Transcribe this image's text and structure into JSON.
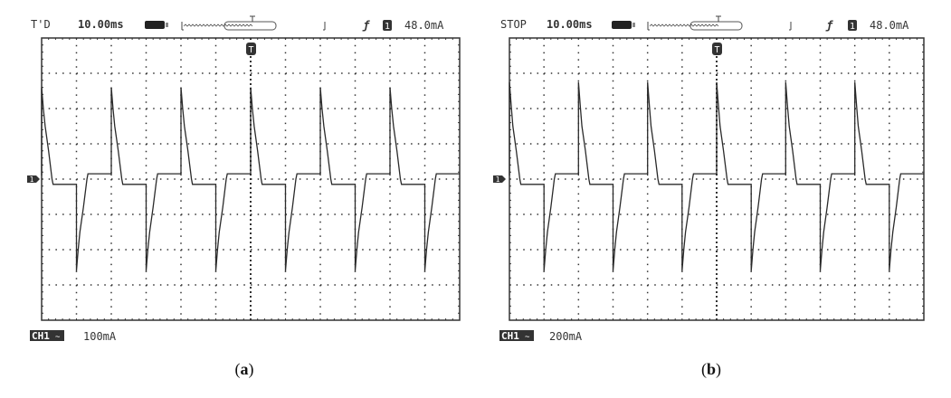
{
  "chart_data": [
    {
      "type": "line",
      "status": "T'D",
      "timebase": "10.00ms",
      "trigger_source": "1",
      "trigger_level": "48.0mA",
      "channel_label": "CH1",
      "volts_per_div": "100mA",
      "caption_open": "(",
      "caption_letter": "a",
      "caption_close": ")",
      "x_units": "ms",
      "y_units": "mA",
      "xlim": [
        -60,
        60
      ],
      "ylim": [
        -400,
        400
      ],
      "grid": true,
      "period_ms": 20,
      "first_positive_spike_ms": -60,
      "period_points": [
        [
          0,
          10
        ],
        [
          0,
          260
        ],
        [
          0.5,
          200
        ],
        [
          1,
          150
        ],
        [
          2,
          80
        ],
        [
          3,
          0
        ],
        [
          3.3,
          -15
        ],
        [
          10,
          -15
        ],
        [
          10,
          -260
        ],
        [
          10.5,
          -200
        ],
        [
          11,
          -150
        ],
        [
          12,
          -80
        ],
        [
          13,
          0
        ],
        [
          13.3,
          15
        ],
        [
          20,
          15
        ]
      ]
    },
    {
      "type": "line",
      "status": "STOP",
      "timebase": "10.00ms",
      "trigger_source": "1",
      "trigger_level": "48.0mA",
      "channel_label": "CH1",
      "volts_per_div": "200mA",
      "caption_open": "(",
      "caption_letter": "b",
      "caption_close": ")",
      "x_units": "ms",
      "y_units": "mA",
      "xlim": [
        -60,
        60
      ],
      "ylim": [
        -800,
        800
      ],
      "grid": true,
      "period_ms": 20,
      "first_positive_spike_ms": -60,
      "period_points": [
        [
          0,
          20
        ],
        [
          0,
          550
        ],
        [
          0.5,
          420
        ],
        [
          1,
          300
        ],
        [
          2,
          160
        ],
        [
          3,
          0
        ],
        [
          3.3,
          -30
        ],
        [
          10,
          -30
        ],
        [
          10,
          -520
        ],
        [
          10.5,
          -400
        ],
        [
          11,
          -300
        ],
        [
          12,
          -160
        ],
        [
          13,
          0
        ],
        [
          13.3,
          30
        ],
        [
          20,
          30
        ]
      ]
    }
  ],
  "colors": {
    "trace": "#2a2a2a",
    "grid": "#333333",
    "badge": "#333333"
  }
}
